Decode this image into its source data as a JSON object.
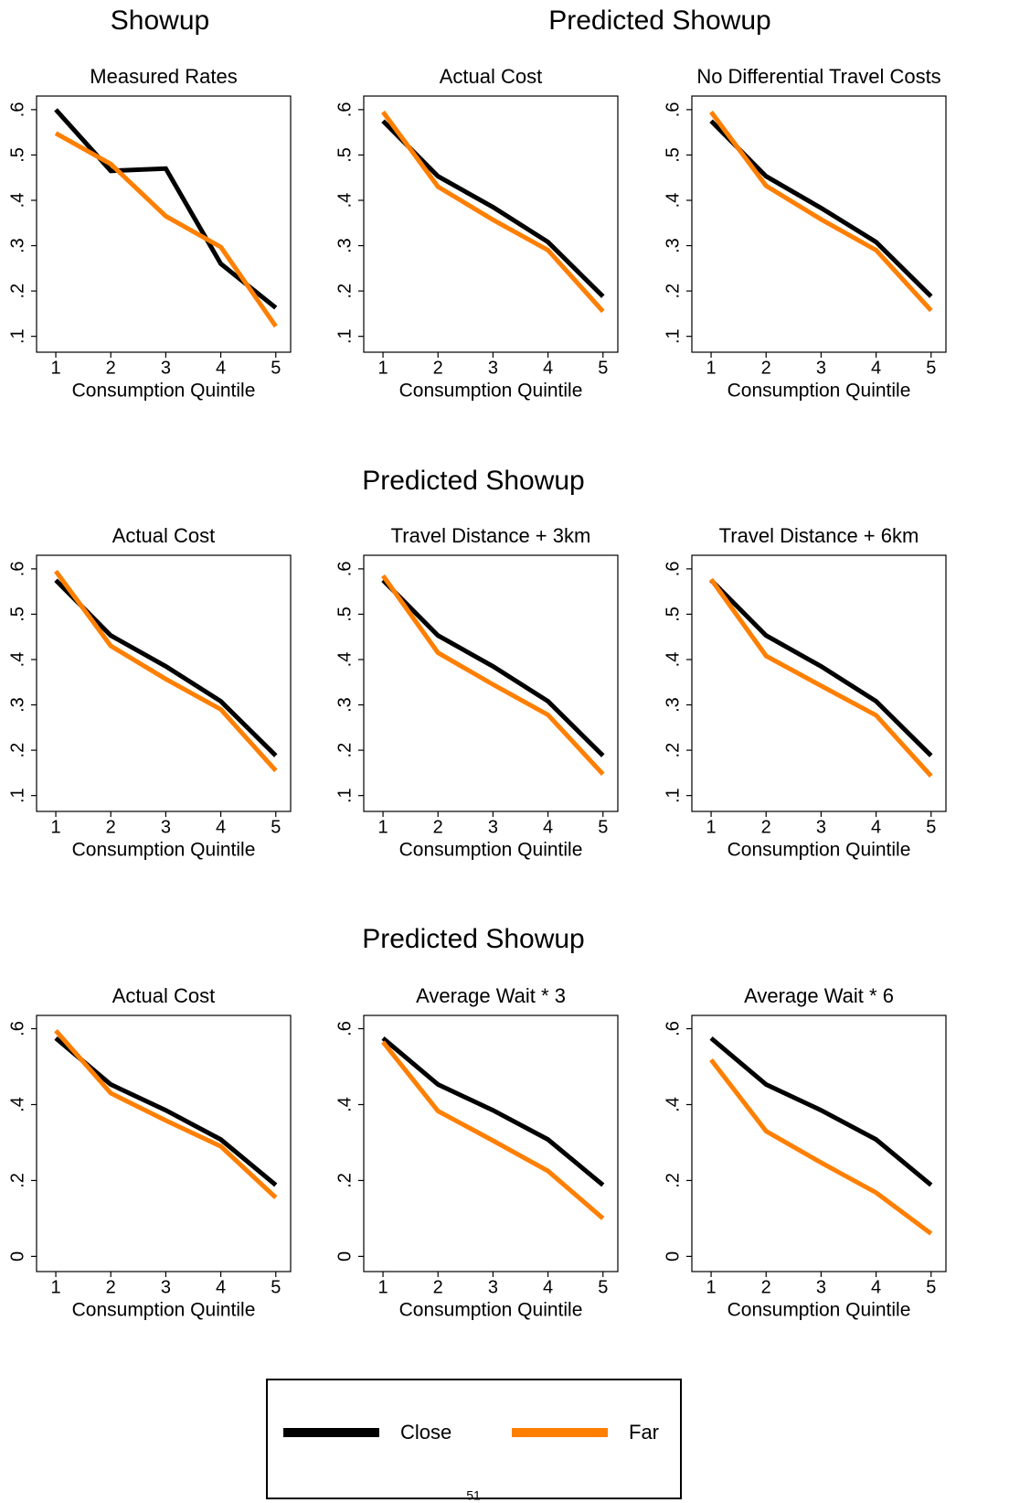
{
  "headings": [
    "Showup",
    "Predicted Showup",
    "Predicted Showup",
    "Predicted Showup"
  ],
  "footer": "51",
  "chart_data": [
    {
      "type": "line",
      "title": "Measured Rates",
      "xlabel": "Consumption Quintile",
      "x": [
        1,
        2,
        3,
        4,
        5
      ],
      "series": [
        {
          "name": "Close",
          "color": "#000000",
          "values": [
            0.6,
            0.465,
            0.47,
            0.26,
            0.163
          ]
        },
        {
          "name": "Far",
          "color": "#ff7f00",
          "values": [
            0.548,
            0.48,
            0.365,
            0.297,
            0.122
          ]
        }
      ],
      "xlim": [
        0.65,
        5.27
      ],
      "ylim": [
        0.065,
        0.63
      ],
      "xticks": [
        1,
        2,
        3,
        4,
        5
      ],
      "yticks": [
        {
          "value": 0.1,
          "label": ".1"
        },
        {
          "value": 0.2,
          "label": ".2"
        },
        {
          "value": 0.3,
          "label": ".3"
        },
        {
          "value": 0.4,
          "label": ".4"
        },
        {
          "value": 0.5,
          "label": ".5"
        },
        {
          "value": 0.6,
          "label": ".6"
        }
      ]
    },
    {
      "type": "line",
      "title": "Actual Cost",
      "xlabel": "Consumption Quintile",
      "x": [
        1,
        2,
        3,
        4,
        5
      ],
      "series": [
        {
          "name": "Close",
          "color": "#000000",
          "values": [
            0.575,
            0.453,
            0.385,
            0.308,
            0.188
          ]
        },
        {
          "name": "Far",
          "color": "#ff7f00",
          "values": [
            0.595,
            0.43,
            0.357,
            0.29,
            0.155
          ]
        }
      ],
      "xlim": [
        0.65,
        5.27
      ],
      "ylim": [
        0.065,
        0.63
      ],
      "xticks": [
        1,
        2,
        3,
        4,
        5
      ],
      "yticks": [
        {
          "value": 0.1,
          "label": ".1"
        },
        {
          "value": 0.2,
          "label": ".2"
        },
        {
          "value": 0.3,
          "label": ".3"
        },
        {
          "value": 0.4,
          "label": ".4"
        },
        {
          "value": 0.5,
          "label": ".5"
        },
        {
          "value": 0.6,
          "label": ".6"
        }
      ]
    },
    {
      "type": "line",
      "title": "No Differential Travel Costs",
      "xlabel": "Consumption Quintile",
      "x": [
        1,
        2,
        3,
        4,
        5
      ],
      "series": [
        {
          "name": "Close",
          "color": "#000000",
          "values": [
            0.575,
            0.453,
            0.383,
            0.308,
            0.188
          ]
        },
        {
          "name": "Far",
          "color": "#ff7f00",
          "values": [
            0.595,
            0.432,
            0.358,
            0.29,
            0.157
          ]
        }
      ],
      "xlim": [
        0.65,
        5.27
      ],
      "ylim": [
        0.065,
        0.63
      ],
      "xticks": [
        1,
        2,
        3,
        4,
        5
      ],
      "yticks": [
        {
          "value": 0.1,
          "label": ".1"
        },
        {
          "value": 0.2,
          "label": ".2"
        },
        {
          "value": 0.3,
          "label": ".3"
        },
        {
          "value": 0.4,
          "label": ".4"
        },
        {
          "value": 0.5,
          "label": ".5"
        },
        {
          "value": 0.6,
          "label": ".6"
        }
      ]
    },
    {
      "type": "line",
      "title": "Actual Cost",
      "xlabel": "Consumption Quintile",
      "x": [
        1,
        2,
        3,
        4,
        5
      ],
      "series": [
        {
          "name": "Close",
          "color": "#000000",
          "values": [
            0.575,
            0.453,
            0.385,
            0.308,
            0.188
          ]
        },
        {
          "name": "Far",
          "color": "#ff7f00",
          "values": [
            0.595,
            0.43,
            0.357,
            0.29,
            0.155
          ]
        }
      ],
      "xlim": [
        0.65,
        5.27
      ],
      "ylim": [
        0.065,
        0.63
      ],
      "xticks": [
        1,
        2,
        3,
        4,
        5
      ],
      "yticks": [
        {
          "value": 0.1,
          "label": ".1"
        },
        {
          "value": 0.2,
          "label": ".2"
        },
        {
          "value": 0.3,
          "label": ".3"
        },
        {
          "value": 0.4,
          "label": ".4"
        },
        {
          "value": 0.5,
          "label": ".5"
        },
        {
          "value": 0.6,
          "label": ".6"
        }
      ]
    },
    {
      "type": "line",
      "title": "Travel Distance + 3km",
      "xlabel": "Consumption Quintile",
      "x": [
        1,
        2,
        3,
        4,
        5
      ],
      "series": [
        {
          "name": "Close",
          "color": "#000000",
          "values": [
            0.575,
            0.453,
            0.385,
            0.308,
            0.188
          ]
        },
        {
          "name": "Far",
          "color": "#ff7f00",
          "values": [
            0.585,
            0.415,
            0.345,
            0.278,
            0.147
          ]
        }
      ],
      "xlim": [
        0.65,
        5.27
      ],
      "ylim": [
        0.065,
        0.63
      ],
      "xticks": [
        1,
        2,
        3,
        4,
        5
      ],
      "yticks": [
        {
          "value": 0.1,
          "label": ".1"
        },
        {
          "value": 0.2,
          "label": ".2"
        },
        {
          "value": 0.3,
          "label": ".3"
        },
        {
          "value": 0.4,
          "label": ".4"
        },
        {
          "value": 0.5,
          "label": ".5"
        },
        {
          "value": 0.6,
          "label": ".6"
        }
      ]
    },
    {
      "type": "line",
      "title": "Travel Distance + 6km",
      "xlabel": "Consumption Quintile",
      "x": [
        1,
        2,
        3,
        4,
        5
      ],
      "series": [
        {
          "name": "Close",
          "color": "#000000",
          "values": [
            0.575,
            0.453,
            0.385,
            0.308,
            0.188
          ]
        },
        {
          "name": "Far",
          "color": "#ff7f00",
          "values": [
            0.577,
            0.408,
            0.342,
            0.277,
            0.143
          ]
        }
      ],
      "xlim": [
        0.65,
        5.27
      ],
      "ylim": [
        0.065,
        0.63
      ],
      "xticks": [
        1,
        2,
        3,
        4,
        5
      ],
      "yticks": [
        {
          "value": 0.1,
          "label": ".1"
        },
        {
          "value": 0.2,
          "label": ".2"
        },
        {
          "value": 0.3,
          "label": ".3"
        },
        {
          "value": 0.4,
          "label": ".4"
        },
        {
          "value": 0.5,
          "label": ".5"
        },
        {
          "value": 0.6,
          "label": ".6"
        }
      ]
    },
    {
      "type": "line",
      "title": "Actual Cost",
      "xlabel": "Consumption Quintile",
      "x": [
        1,
        2,
        3,
        4,
        5
      ],
      "series": [
        {
          "name": "Close",
          "color": "#000000",
          "values": [
            0.575,
            0.453,
            0.385,
            0.308,
            0.188
          ]
        },
        {
          "name": "Far",
          "color": "#ff7f00",
          "values": [
            0.595,
            0.43,
            0.358,
            0.29,
            0.155
          ]
        }
      ],
      "xlim": [
        0.65,
        5.27
      ],
      "ylim": [
        -0.04,
        0.635
      ],
      "xticks": [
        1,
        2,
        3,
        4,
        5
      ],
      "yticks": [
        0,
        {
          "value": 0.2,
          "label": ".2"
        },
        {
          "value": 0.4,
          "label": ".4"
        },
        {
          "value": 0.6,
          "label": ".6"
        }
      ]
    },
    {
      "type": "line",
      "title": "Average Wait * 3",
      "xlabel": "Consumption Quintile",
      "x": [
        1,
        2,
        3,
        4,
        5
      ],
      "series": [
        {
          "name": "Close",
          "color": "#000000",
          "values": [
            0.575,
            0.453,
            0.385,
            0.308,
            0.188
          ]
        },
        {
          "name": "Far",
          "color": "#ff7f00",
          "values": [
            0.565,
            0.383,
            0.305,
            0.225,
            0.1
          ]
        }
      ],
      "xlim": [
        0.65,
        5.27
      ],
      "ylim": [
        -0.04,
        0.635
      ],
      "xticks": [
        1,
        2,
        3,
        4,
        5
      ],
      "yticks": [
        0,
        {
          "value": 0.2,
          "label": ".2"
        },
        {
          "value": 0.4,
          "label": ".4"
        },
        {
          "value": 0.6,
          "label": ".6"
        }
      ]
    },
    {
      "type": "line",
      "title": "Average Wait * 6",
      "xlabel": "Consumption Quintile",
      "x": [
        1,
        2,
        3,
        4,
        5
      ],
      "series": [
        {
          "name": "Close",
          "color": "#000000",
          "values": [
            0.575,
            0.453,
            0.385,
            0.308,
            0.188
          ]
        },
        {
          "name": "Far",
          "color": "#ff7f00",
          "values": [
            0.518,
            0.33,
            0.247,
            0.168,
            0.06
          ]
        }
      ],
      "xlim": [
        0.65,
        5.27
      ],
      "ylim": [
        -0.04,
        0.635
      ],
      "xticks": [
        1,
        2,
        3,
        4,
        5
      ],
      "yticks": [
        0,
        {
          "value": 0.2,
          "label": ".2"
        },
        {
          "value": 0.4,
          "label": ".4"
        },
        {
          "value": 0.6,
          "label": ".6"
        }
      ]
    }
  ]
}
